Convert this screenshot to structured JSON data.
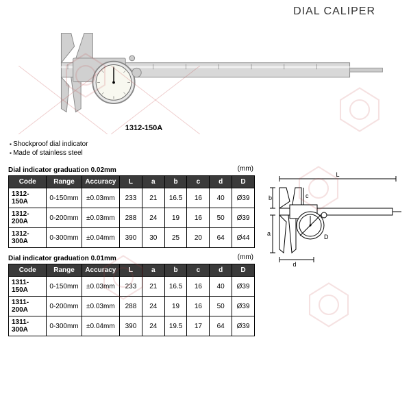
{
  "title": "DIAL CALIPER",
  "model_caption": "1312-150A",
  "features": [
    "Shockproof dial indicator",
    "Made of stainless steel"
  ],
  "table1": {
    "title": "Dial indicator graduation 0.02mm",
    "unit": "(mm)",
    "columns": [
      "Code",
      "Range",
      "Accuracy",
      "L",
      "a",
      "b",
      "c",
      "d",
      "D"
    ],
    "rows": [
      [
        "1312-150A",
        "0-150mm",
        "±0.03mm",
        "233",
        "21",
        "16.5",
        "16",
        "40",
        "Ø39"
      ],
      [
        "1312-200A",
        "0-200mm",
        "±0.03mm",
        "288",
        "24",
        "19",
        "16",
        "50",
        "Ø39"
      ],
      [
        "1312-300A",
        "0-300mm",
        "±0.04mm",
        "390",
        "30",
        "25",
        "20",
        "64",
        "Ø44"
      ]
    ]
  },
  "table2": {
    "title": "Dial indicator graduation 0.01mm",
    "unit": "(mm)",
    "columns": [
      "Code",
      "Range",
      "Accuracy",
      "L",
      "a",
      "b",
      "c",
      "d",
      "D"
    ],
    "rows": [
      [
        "1311-150A",
        "0-150mm",
        "±0.03mm",
        "233",
        "21",
        "16.5",
        "16",
        "40",
        "Ø39"
      ],
      [
        "1311-200A",
        "0-200mm",
        "±0.03mm",
        "288",
        "24",
        "19",
        "16",
        "50",
        "Ø39"
      ],
      [
        "1311-300A",
        "0-300mm",
        "±0.04mm",
        "390",
        "24",
        "19.5",
        "17",
        "64",
        "Ø39"
      ]
    ]
  },
  "colors": {
    "header_bg": "#3a3a3a",
    "text": "#000000",
    "watermark": "#c05050"
  }
}
